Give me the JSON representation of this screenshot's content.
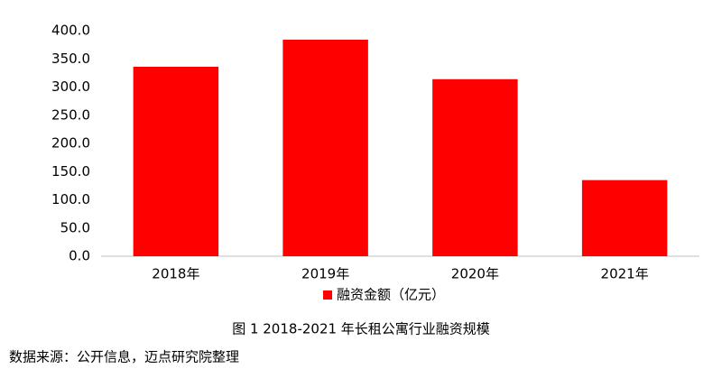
{
  "chart_data": {
    "type": "bar",
    "categories": [
      "2018年",
      "2019年",
      "2020年",
      "2021年"
    ],
    "series": [
      {
        "name": "融资金额（亿元）",
        "color": "#ff0000",
        "values": [
          336,
          384,
          314,
          135
        ]
      }
    ],
    "ylim": [
      0,
      400
    ],
    "yticks": [
      {
        "value": 0,
        "label": "0.0"
      },
      {
        "value": 50,
        "label": "50.0"
      },
      {
        "value": 100,
        "label": "100.0"
      },
      {
        "value": 150,
        "label": "150.0"
      },
      {
        "value": 200,
        "label": "200.0"
      },
      {
        "value": 250,
        "label": "250.0"
      },
      {
        "value": 300,
        "label": "300.0"
      },
      {
        "value": 350,
        "label": "350.0"
      },
      {
        "value": 400,
        "label": "400.0"
      }
    ],
    "grid": false,
    "legend": "bottom"
  },
  "caption": "图 1 2018-2021 年长租公寓行业融资规模",
  "source": "数据来源：公开信息，迈点研究院整理"
}
